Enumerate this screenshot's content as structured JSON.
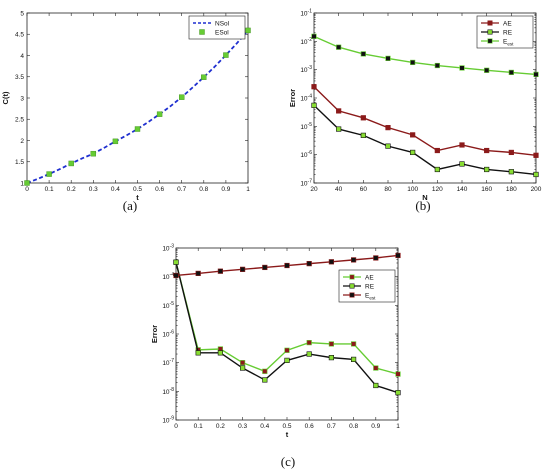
{
  "panel_labels": [
    "(a)",
    "(b)",
    "(c)"
  ],
  "chart_data": [
    {
      "type": "line",
      "panel": "(a)",
      "xlabel": "t",
      "ylabel": "C(t)",
      "xlim": [
        0,
        1
      ],
      "ylim": [
        1,
        5
      ],
      "x_ticks": [
        0,
        0.1,
        0.2,
        0.3,
        0.4,
        0.5,
        0.6,
        0.7,
        0.8,
        0.9,
        1
      ],
      "x_tick_labels": [
        "0",
        "0.1",
        "0.2",
        "0.3",
        "0.4",
        "0.5",
        "0.6",
        "0.7",
        "0.8",
        "0.9",
        "1"
      ],
      "y_ticks": [
        1,
        1.5,
        2,
        2.5,
        3,
        3.5,
        4,
        4.5,
        5
      ],
      "y_tick_labels": [
        "1",
        "1.5",
        "2",
        "2.5",
        "3",
        "3.5",
        "4",
        "4.5",
        "5"
      ],
      "legend_position": "top-right",
      "grid": false,
      "series": [
        {
          "name": "NSol",
          "style": "dashed",
          "color": "#1f2fd0",
          "x": [
            0,
            0.05,
            0.1,
            0.15,
            0.2,
            0.25,
            0.3,
            0.35,
            0.4,
            0.45,
            0.5,
            0.55,
            0.6,
            0.65,
            0.7,
            0.75,
            0.8,
            0.85,
            0.9,
            0.95,
            1
          ],
          "y": [
            1.0,
            1.1,
            1.21,
            1.33,
            1.46,
            1.58,
            1.69,
            1.83,
            1.98,
            2.12,
            2.27,
            2.44,
            2.62,
            2.81,
            3.02,
            3.25,
            3.49,
            3.74,
            4.01,
            4.29,
            4.59
          ]
        },
        {
          "name": "ESol",
          "style": "markers",
          "color": "#66cc33",
          "x": [
            0,
            0.1,
            0.2,
            0.3,
            0.4,
            0.5,
            0.6,
            0.7,
            0.8,
            0.9,
            1
          ],
          "y": [
            1.0,
            1.21,
            1.46,
            1.69,
            1.98,
            2.27,
            2.62,
            3.02,
            3.49,
            4.01,
            4.59
          ]
        }
      ]
    },
    {
      "type": "line",
      "panel": "(b)",
      "xlabel": "N",
      "ylabel": "Error",
      "xlim": [
        20,
        200
      ],
      "ylim_log10": [
        -7,
        -1
      ],
      "yscale": "log",
      "x_ticks": [
        20,
        40,
        60,
        80,
        100,
        120,
        140,
        160,
        180,
        200
      ],
      "x_tick_labels": [
        "20",
        "40",
        "60",
        "80",
        "100",
        "120",
        "140",
        "160",
        "180",
        "200"
      ],
      "y_tick_exponents": [
        -7,
        -6,
        -5,
        -4,
        -3,
        -2,
        -1
      ],
      "y_tick_base": "10",
      "y_tick_exponent_labels": [
        "-7",
        "-6",
        "-5",
        "-4",
        "-3",
        "-2",
        "-1"
      ],
      "legend_position": "top-right",
      "grid": false,
      "series": [
        {
          "name": "AE",
          "color": "#8b1a1a",
          "marker_color": "#8b1a1a",
          "x": [
            20,
            40,
            60,
            80,
            100,
            120,
            140,
            160,
            180,
            200
          ],
          "y": [
            0.00025,
            3.5e-05,
            2e-05,
            9e-06,
            5e-06,
            1.4e-06,
            2.2e-06,
            1.4e-06,
            1.2e-06,
            9.5e-07
          ]
        },
        {
          "name": "RE",
          "color": "#111111",
          "marker_color": "#88dd33",
          "x": [
            20,
            40,
            60,
            80,
            100,
            120,
            140,
            160,
            180,
            200
          ],
          "y": [
            5.5e-05,
            8e-06,
            4.8e-06,
            2e-06,
            1.2e-06,
            3e-07,
            4.7e-07,
            3e-07,
            2.5e-07,
            2e-07
          ]
        },
        {
          "name": "E",
          "name_subscript": "est",
          "color": "#66cc33",
          "marker_color": "#111111",
          "x": [
            20,
            40,
            60,
            80,
            100,
            120,
            140,
            160,
            180,
            200
          ],
          "y": [
            0.015,
            0.0062,
            0.0036,
            0.0025,
            0.0018,
            0.0014,
            0.00115,
            0.00095,
            0.0008,
            0.00068
          ]
        }
      ]
    },
    {
      "type": "line",
      "panel": "(c)",
      "xlabel": "t",
      "ylabel": "Error",
      "xlim": [
        0,
        1
      ],
      "ylim_log10": [
        -9,
        -3
      ],
      "yscale": "log",
      "x_ticks": [
        0,
        0.1,
        0.2,
        0.3,
        0.4,
        0.5,
        0.6,
        0.7,
        0.8,
        0.9,
        1
      ],
      "x_tick_labels": [
        "0",
        "0.1",
        "0.2",
        "0.3",
        "0.4",
        "0.5",
        "0.6",
        "0.7",
        "0.8",
        "0.9",
        "1"
      ],
      "y_tick_exponents": [
        -9,
        -8,
        -7,
        -6,
        -5,
        -4,
        -3
      ],
      "y_tick_base": "10",
      "y_tick_exponent_labels": [
        "-9",
        "-8",
        "-7",
        "-6",
        "-5",
        "-4",
        "-3"
      ],
      "legend_position": "right",
      "grid": false,
      "series": [
        {
          "name": "AE",
          "color": "#66cc33",
          "marker_color": "#8b1a1a",
          "x": [
            0,
            0.1,
            0.2,
            0.3,
            0.4,
            0.5,
            0.6,
            0.7,
            0.8,
            0.9,
            1
          ],
          "y": [
            0.00032,
            2.8e-07,
            3e-07,
            1e-07,
            5e-08,
            2.7e-07,
            5e-07,
            4.5e-07,
            4.5e-07,
            6.5e-08,
            4e-08
          ]
        },
        {
          "name": "RE",
          "color": "#111111",
          "marker_color": "#88dd33",
          "x": [
            0,
            0.1,
            0.2,
            0.3,
            0.4,
            0.5,
            0.6,
            0.7,
            0.8,
            0.9,
            1
          ],
          "y": [
            0.00032,
            2.2e-07,
            2.2e-07,
            6.5e-08,
            2.5e-08,
            1.2e-07,
            2e-07,
            1.5e-07,
            1.3e-07,
            1.6e-08,
            9e-09
          ]
        },
        {
          "name": "E",
          "name_subscript": "est",
          "color": "#8b1a1a",
          "marker_color": "#111111",
          "x": [
            0,
            0.1,
            0.2,
            0.3,
            0.4,
            0.5,
            0.6,
            0.7,
            0.8,
            0.9,
            1
          ],
          "y": [
            0.00011,
            0.00013,
            0.000155,
            0.00018,
            0.00021,
            0.000245,
            0.000285,
            0.00033,
            0.000385,
            0.00045,
            0.00055
          ]
        }
      ]
    }
  ]
}
